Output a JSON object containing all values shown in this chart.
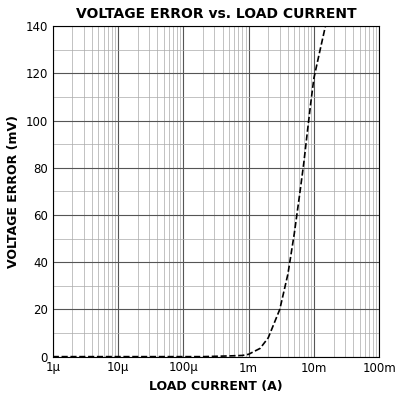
{
  "title": "VOLTAGE ERROR vs. LOAD CURRENT",
  "xlabel": "LOAD CURRENT (A)",
  "ylabel": "VOLTAGE ERROR (mV)",
  "xmin": 1e-06,
  "xmax": 0.1,
  "ymin": 0,
  "ymax": 140,
  "yticks": [
    0,
    20,
    40,
    60,
    80,
    100,
    120,
    140
  ],
  "xtick_labels": [
    "1μ",
    "10μ",
    "100μ",
    "1m",
    "10m",
    "100m"
  ],
  "xtick_vals": [
    1e-06,
    1e-05,
    0.0001,
    0.001,
    0.01,
    0.1
  ],
  "curve_x": [
    1e-06,
    1e-05,
    5e-05,
    0.0001,
    0.0002,
    0.0005,
    0.0008,
    0.001,
    0.0015,
    0.002,
    0.003,
    0.004,
    0.005,
    0.006,
    0.007,
    0.008,
    0.009,
    0.01,
    0.012,
    0.015
  ],
  "curve_y": [
    0,
    0,
    0,
    0,
    0,
    0.3,
    0.5,
    1.0,
    3.5,
    8,
    20,
    35,
    52,
    68,
    82,
    96,
    108,
    118,
    128,
    140
  ],
  "line_color": "#000000",
  "line_style": "--",
  "line_width": 1.2,
  "bg_color": "#ffffff",
  "grid_major_color": "#555555",
  "grid_minor_color": "#aaaaaa",
  "grid_major_lw": 0.8,
  "grid_minor_lw": 0.5,
  "title_fontsize": 10,
  "label_fontsize": 9,
  "tick_fontsize": 8.5
}
